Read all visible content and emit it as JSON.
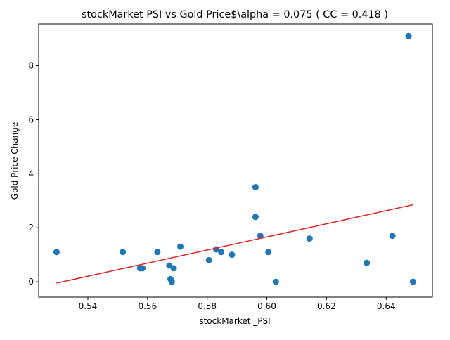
{
  "chart_data": {
    "type": "scatter",
    "title": "stockMarket  PSI vs Gold Price$\\alpha = 0.075 ( CC = 0.418 )",
    "xlabel": "stockMarket _PSI",
    "ylabel": "Gold Price Change",
    "xlim": [
      0.5235,
      0.6555
    ],
    "ylim": [
      -0.57,
      9.55
    ],
    "xticks": [
      0.54,
      0.56,
      0.58,
      0.6,
      0.62,
      0.64
    ],
    "xtick_labels": [
      "0.54",
      "0.56",
      "0.58",
      "0.60",
      "0.62",
      "0.64"
    ],
    "yticks": [
      0,
      2,
      4,
      6,
      8
    ],
    "ytick_labels": [
      "0",
      "2",
      "4",
      "6",
      "8"
    ],
    "grid": false,
    "points": [
      {
        "x": 0.5295,
        "y": 1.1
      },
      {
        "x": 0.5517,
        "y": 1.1
      },
      {
        "x": 0.5575,
        "y": 0.5
      },
      {
        "x": 0.5583,
        "y": 0.5
      },
      {
        "x": 0.5633,
        "y": 1.1
      },
      {
        "x": 0.5673,
        "y": 0.6
      },
      {
        "x": 0.5677,
        "y": 0.1
      },
      {
        "x": 0.5681,
        "y": 0.0
      },
      {
        "x": 0.5688,
        "y": 0.5
      },
      {
        "x": 0.571,
        "y": 1.3
      },
      {
        "x": 0.5806,
        "y": 0.8
      },
      {
        "x": 0.583,
        "y": 1.2
      },
      {
        "x": 0.5847,
        "y": 1.1
      },
      {
        "x": 0.5883,
        "y": 1.0
      },
      {
        "x": 0.5962,
        "y": 3.5
      },
      {
        "x": 0.5962,
        "y": 2.4
      },
      {
        "x": 0.5978,
        "y": 1.7
      },
      {
        "x": 0.6005,
        "y": 1.1
      },
      {
        "x": 0.603,
        "y": 0.0
      },
      {
        "x": 0.6143,
        "y": 1.6
      },
      {
        "x": 0.6335,
        "y": 0.7
      },
      {
        "x": 0.6421,
        "y": 1.7
      },
      {
        "x": 0.6475,
        "y": 9.1
      },
      {
        "x": 0.649,
        "y": 0.0
      }
    ],
    "fit_line": {
      "x": [
        0.5295,
        0.649
      ],
      "y": [
        -0.05,
        2.85
      ]
    },
    "colors": {
      "points": "#1f77b4",
      "fit_line": "#d62728",
      "axes": "#000000",
      "background": "#ffffff"
    }
  }
}
